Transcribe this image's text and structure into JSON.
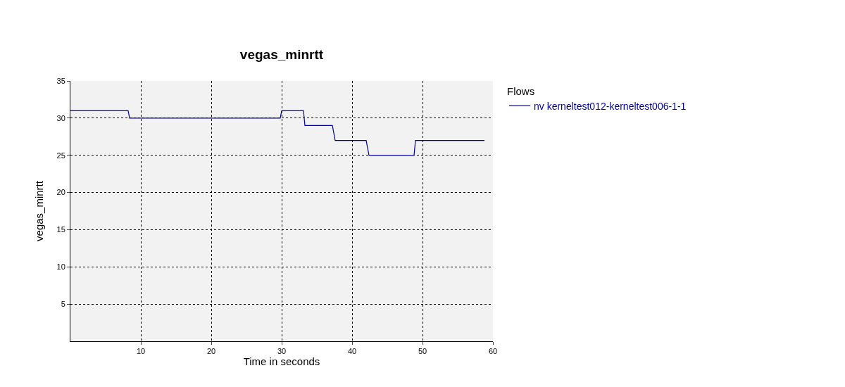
{
  "chart_data": {
    "type": "line",
    "title": "vegas_minrtt",
    "xlabel": "Time in seconds",
    "ylabel": "vegas_minrtt",
    "legend_title": "Flows",
    "series": [
      {
        "name": "nv kerneltest012-kerneltest006-1-1",
        "color": "#000099",
        "x": [
          0,
          8.2,
          8.4,
          29.8,
          30.0,
          33.1,
          33.3,
          37.2,
          37.6,
          42.0,
          42.4,
          48.8,
          49.0,
          58.8
        ],
        "values": [
          31,
          31,
          30,
          30,
          31,
          31,
          29,
          29,
          27,
          27,
          25,
          25,
          27,
          27
        ]
      }
    ],
    "xlim": [
      0,
      60
    ],
    "xticks": [
      10,
      20,
      30,
      40,
      50,
      60
    ],
    "ylim": [
      0,
      35
    ],
    "yticks": [
      5,
      10,
      15,
      20,
      25,
      30,
      35
    ],
    "grid": true,
    "legend": "top right",
    "marker": "none",
    "line_style": "solid"
  }
}
